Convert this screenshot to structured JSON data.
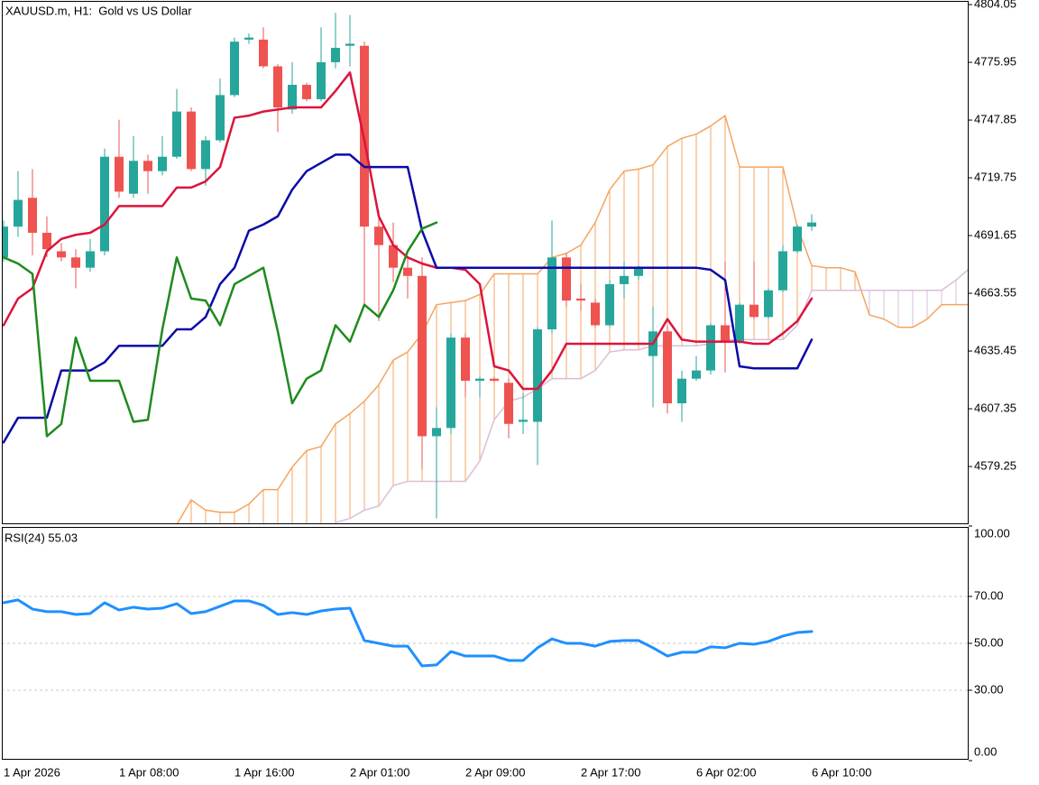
{
  "chart_data": [
    {
      "type": "candlestick",
      "title": "XAUUSD.m, H1:  Gold vs US Dollar",
      "categories": [
        "1 Apr 2026",
        null,
        null,
        null,
        null,
        null,
        null,
        null,
        "1 Apr 08:00",
        null,
        null,
        null,
        null,
        null,
        null,
        null,
        "1 Apr 16:00",
        null,
        null,
        null,
        null,
        null,
        null,
        null,
        "2 Apr 01:00",
        null,
        null,
        null,
        null,
        null,
        null,
        null,
        "2 Apr 09:00",
        null,
        null,
        null,
        null,
        null,
        null,
        null,
        "2 Apr 17:00",
        null,
        null,
        null,
        null,
        null,
        null,
        null,
        "6 Apr 02:00",
        null,
        null,
        null,
        null,
        null,
        null,
        null,
        "6 Apr 10:00",
        null,
        null,
        null,
        null,
        null,
        null,
        null,
        null,
        null,
        null,
        null
      ],
      "open": [
        4681,
        4696,
        4710,
        4693,
        4684,
        4681,
        4676,
        4684,
        4730,
        4712,
        4728,
        4723,
        4730,
        4752,
        4724,
        4738,
        4760,
        4787,
        4787,
        4774,
        4753,
        4765,
        4758,
        4776,
        4784,
        4784,
        4696,
        4687,
        4676,
        4672,
        4594,
        4598,
        4642,
        4621,
        4622,
        4620,
        4601,
        4601,
        4646,
        4681,
        4661,
        4659,
        4648,
        4668,
        4672,
        4633,
        4645,
        4610,
        4622,
        4626,
        4648,
        4640,
        4658,
        4652,
        4665,
        4684,
        4696,
        null,
        null,
        null,
        null,
        null,
        null,
        null,
        null,
        null,
        null,
        null
      ],
      "high": [
        4699,
        4723,
        4724,
        4701,
        4688,
        4685,
        4690,
        4734,
        4748,
        4740,
        4731,
        4740,
        4763,
        4754,
        4740,
        4768,
        4788,
        4790,
        4793,
        4775,
        4776,
        4766,
        4793,
        4800,
        4799,
        4786,
        4704,
        4698,
        4681,
        4681,
        4608,
        4644,
        4644,
        4623,
        4623,
        4622,
        4615,
        4647,
        4699,
        4683,
        4668,
        4661,
        4670,
        4679,
        4677,
        4657,
        4648,
        4626,
        4633,
        4649,
        4679,
        4659,
        4679,
        4666,
        4687,
        4697,
        4702,
        null,
        null,
        null,
        null,
        null,
        null,
        null,
        null,
        null,
        null,
        null
      ],
      "low": [
        4679,
        4691,
        4682,
        4681,
        4679,
        4666,
        4674,
        4682,
        4710,
        4710,
        4712,
        4721,
        4729,
        4723,
        4716,
        4737,
        4759,
        4785,
        4773,
        4742,
        4751,
        4757,
        4757,
        4773,
        4774,
        4657,
        4650,
        4669,
        4661,
        4578,
        4554,
        4595,
        4613,
        4613,
        4620,
        4593,
        4595,
        4580,
        4644,
        4657,
        4655,
        4647,
        4647,
        4661,
        4670,
        4608,
        4605,
        4601,
        4621,
        4624,
        4625,
        4639,
        4651,
        4651,
        4664,
        4683,
        4694,
        null,
        null,
        null,
        null,
        null,
        null,
        null,
        null,
        null,
        null,
        null
      ],
      "close": [
        4696,
        4709,
        4693,
        4685,
        4681,
        4676,
        4684,
        4730,
        4713,
        4728,
        4723,
        4730,
        4752,
        4724,
        4738,
        4760,
        4786,
        4788,
        4774,
        4754,
        4765,
        4758,
        4776,
        4783,
        4785,
        4696,
        4687,
        4676,
        4672,
        4594,
        4598,
        4642,
        4621,
        4622,
        4621,
        4600,
        4602,
        4646,
        4681,
        4660,
        4660,
        4648,
        4668,
        4672,
        4676,
        4645,
        4610,
        4622,
        4626,
        4648,
        4640,
        4658,
        4652,
        4665,
        4684,
        4696,
        4698,
        null,
        null,
        null,
        null,
        null,
        null,
        null,
        null,
        null,
        null,
        null
      ],
      "up_color": "#26a69a",
      "down_color": "#ef5350",
      "series": [
        {
          "color": "#dc143c",
          "values": [
            4648,
            4661,
            4666,
            4684,
            4690,
            4692,
            4693,
            4697,
            4706,
            4706,
            4706,
            4706,
            4715,
            4715,
            4718,
            4725,
            4749,
            4750,
            4752,
            4753,
            4754,
            4754,
            4754,
            4762,
            4771,
            4738,
            4701,
            4687,
            4681,
            4678,
            4676,
            4676,
            4675,
            4668,
            4628,
            4626,
            4617,
            4617,
            4626,
            4639,
            4639,
            4639,
            4639,
            4639,
            4639,
            4639,
            4651,
            4641,
            4640,
            4640,
            4640,
            4640,
            4639,
            4639,
            4644,
            4650,
            4661,
            null,
            null,
            null,
            null,
            null,
            null,
            null,
            null,
            null,
            null,
            null
          ]
        },
        {
          "color": "#0a0aa8",
          "values": [
            4591,
            4603,
            4603,
            4603,
            4626,
            4626,
            4626,
            4630,
            4638,
            4638,
            4638,
            4638,
            4646,
            4646,
            4652,
            4668,
            4676,
            4694,
            4697,
            4701,
            4714,
            4723,
            4727,
            4731,
            4731,
            4725,
            4725,
            4725,
            4725,
            4694,
            4676,
            4676,
            4676,
            4676,
            4676,
            4676,
            4676,
            4676,
            4676,
            4676,
            4676,
            4676,
            4676,
            4676,
            4676,
            4676,
            4676,
            4676,
            4676,
            4675,
            4670,
            4628,
            4627,
            4627,
            4627,
            4627,
            4641,
            null,
            null,
            null,
            null,
            null,
            null,
            null,
            null,
            null,
            null,
            null
          ]
        },
        {
          "color": "#1f8a1f",
          "values": [
            4681,
            4678,
            4673,
            4594,
            4600,
            4642,
            4621,
            4621,
            4621,
            4601,
            4602,
            4646,
            4681,
            4661,
            4660,
            4648,
            4668,
            4672,
            4676,
            4645,
            4610,
            4622,
            4626,
            4648,
            4640,
            4658,
            4652,
            4665,
            4684,
            4695,
            4698,
            null,
            null,
            null,
            null,
            null,
            null,
            null,
            null,
            null,
            null,
            null,
            null,
            null,
            null,
            null,
            null,
            null,
            null,
            null,
            null,
            null,
            null,
            null,
            null,
            null,
            null,
            null,
            null,
            null,
            null,
            null,
            null,
            null,
            null,
            null,
            null,
            null
          ]
        },
        {
          "color": "#f4a460",
          "values": [
            null,
            null,
            null,
            null,
            null,
            null,
            null,
            null,
            null,
            null,
            null,
            null,
            4551,
            4563,
            4558,
            4557,
            4557,
            4561,
            4568,
            4568,
            4579,
            4587,
            4589,
            4600,
            4605,
            4611,
            4619,
            4631,
            4635,
            4644,
            4658,
            4659,
            4660,
            4663,
            4673,
            4673,
            4673,
            4673,
            4681,
            4683,
            4687,
            4698,
            4714,
            4723,
            4724,
            4726,
            4735,
            4739,
            4741,
            4745,
            4750,
            4725,
            4725,
            4725,
            4725,
            4696,
            4677,
            4676,
            4676,
            4674,
            4653,
            4651,
            4647,
            4647,
            4651,
            4658,
            4658,
            4658
          ]
        },
        {
          "color": "#d8bfd8",
          "values": [
            null,
            null,
            null,
            null,
            null,
            null,
            null,
            null,
            null,
            null,
            null,
            null,
            null,
            null,
            null,
            null,
            null,
            null,
            null,
            null,
            null,
            null,
            null,
            4552,
            4554,
            4558,
            4560,
            4570,
            4572,
            4572,
            4572,
            4572,
            4572,
            4582,
            4602,
            4611,
            4613,
            4617,
            4622,
            4622,
            4622,
            4626,
            4635,
            4636,
            4636,
            4638,
            4638,
            4638,
            4638,
            4639,
            4641,
            4641,
            4641,
            4641,
            4641,
            4648,
            4665,
            4665,
            4665,
            4665,
            4665,
            4665,
            4665,
            4665,
            4665,
            4665,
            4670,
            4676
          ]
        }
      ],
      "ylim": [
        4551.6,
        4805.4
      ],
      "yticks": [
        4804.05,
        4775.95,
        4747.85,
        4719.75,
        4691.65,
        4663.55,
        4635.45,
        4607.35,
        4579.25
      ]
    },
    {
      "type": "line",
      "title": "RSI(24) 55.03",
      "series": [
        {
          "color": "#1e90ff",
          "values": [
            67.3,
            68.5,
            64.6,
            63.5,
            63.5,
            62.3,
            62.7,
            67.3,
            64.2,
            65.4,
            64.6,
            65,
            66.9,
            62.7,
            63.5,
            65.8,
            68.1,
            68.1,
            66.2,
            62.3,
            63.1,
            62.3,
            63.8,
            64.6,
            65,
            51.2,
            50,
            48.8,
            48.8,
            40.4,
            40.8,
            46.5,
            44.6,
            44.6,
            44.6,
            42.7,
            42.7,
            48.1,
            51.9,
            50,
            50,
            48.8,
            50.8,
            51.2,
            51.2,
            48.1,
            44.6,
            46.2,
            46.2,
            48.5,
            48.1,
            50,
            49.6,
            50.8,
            53.1,
            54.6,
            55.03
          ]
        }
      ],
      "ylim": [
        0,
        100
      ],
      "yticks": [
        {
          "value": 100,
          "label": "100.00"
        },
        {
          "value": 70,
          "label": "70.00"
        },
        {
          "value": 50,
          "label": "50.00"
        },
        {
          "value": 30,
          "label": "30.00"
        },
        {
          "value": 0,
          "label": "0.00"
        }
      ],
      "grid": true
    }
  ]
}
